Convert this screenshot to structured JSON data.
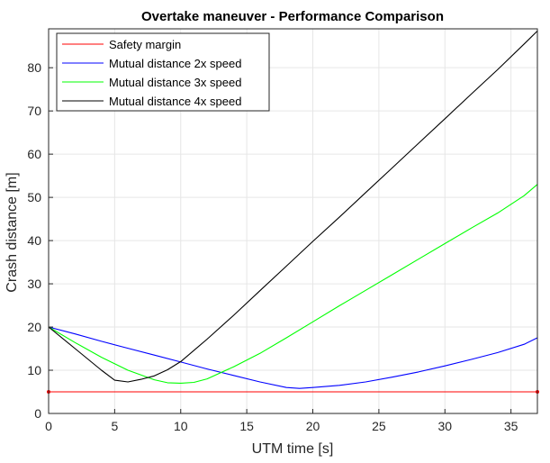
{
  "chart_data": {
    "type": "line",
    "title": "Overtake maneuver - Performance Comparison",
    "xlabel": "UTM time [s]",
    "ylabel": "Crash distance [m]",
    "xlim": [
      0,
      37
    ],
    "ylim": [
      0,
      89
    ],
    "xticks": [
      0,
      5,
      10,
      15,
      20,
      25,
      30,
      35
    ],
    "yticks": [
      0,
      10,
      20,
      30,
      40,
      50,
      60,
      70,
      80
    ],
    "grid": true,
    "legend_position": "top-left",
    "series": [
      {
        "name": "Safety margin",
        "color": "#ff0000",
        "markers": true,
        "points": [
          [
            0,
            5
          ],
          [
            37,
            5
          ]
        ]
      },
      {
        "name": "Mutual distance 2x speed",
        "color": "#0000ff",
        "points": [
          [
            0,
            20
          ],
          [
            2,
            18.4
          ],
          [
            4,
            16.7
          ],
          [
            6,
            15.1
          ],
          [
            8,
            13.5
          ],
          [
            10,
            11.9
          ],
          [
            12,
            10.3
          ],
          [
            14,
            8.8
          ],
          [
            16,
            7.3
          ],
          [
            18,
            6.0
          ],
          [
            19,
            5.8
          ],
          [
            20,
            6.0
          ],
          [
            22,
            6.5
          ],
          [
            24,
            7.3
          ],
          [
            26,
            8.4
          ],
          [
            28,
            9.6
          ],
          [
            30,
            11.0
          ],
          [
            32,
            12.5
          ],
          [
            34,
            14.1
          ],
          [
            36,
            16.0
          ],
          [
            37,
            17.5
          ]
        ]
      },
      {
        "name": "Mutual distance 3x speed",
        "color": "#00ff00",
        "points": [
          [
            0,
            20
          ],
          [
            2,
            16.4
          ],
          [
            4,
            13.0
          ],
          [
            6,
            10.0
          ],
          [
            8,
            7.8
          ],
          [
            9,
            7.1
          ],
          [
            10,
            7.0
          ],
          [
            11,
            7.2
          ],
          [
            12,
            8.0
          ],
          [
            14,
            10.8
          ],
          [
            16,
            13.9
          ],
          [
            18,
            17.5
          ],
          [
            20,
            21.2
          ],
          [
            22,
            24.9
          ],
          [
            24,
            28.5
          ],
          [
            26,
            32.1
          ],
          [
            28,
            35.7
          ],
          [
            30,
            39.3
          ],
          [
            32,
            42.9
          ],
          [
            34,
            46.4
          ],
          [
            36,
            50.4
          ],
          [
            37,
            53.0
          ]
        ]
      },
      {
        "name": "Mutual distance 4x speed",
        "color": "#000000",
        "points": [
          [
            0,
            20
          ],
          [
            2,
            15.0
          ],
          [
            4,
            10.0
          ],
          [
            5,
            7.7
          ],
          [
            6,
            7.3
          ],
          [
            7,
            7.9
          ],
          [
            8,
            8.7
          ],
          [
            9,
            10.1
          ],
          [
            10,
            12.0
          ],
          [
            12,
            17.2
          ],
          [
            14,
            22.7
          ],
          [
            16,
            28.4
          ],
          [
            18,
            34.1
          ],
          [
            20,
            39.8
          ],
          [
            22,
            45.4
          ],
          [
            24,
            51.1
          ],
          [
            26,
            56.8
          ],
          [
            28,
            62.5
          ],
          [
            30,
            68.2
          ],
          [
            32,
            73.9
          ],
          [
            34,
            79.6
          ],
          [
            36,
            85.5
          ],
          [
            37,
            88.5
          ]
        ]
      }
    ]
  }
}
